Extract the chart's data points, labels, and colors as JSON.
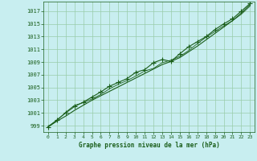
{
  "title": "Graphe pression niveau de la mer (hPa)",
  "background_color": "#c8eef0",
  "plot_bg_color": "#c8eef0",
  "grid_color": "#99ccaa",
  "line_color": "#1a5e1a",
  "marker_color": "#1a5e1a",
  "ylim": [
    998.0,
    1018.5
  ],
  "xlim": [
    -0.5,
    23.5
  ],
  "yticks": [
    999,
    1001,
    1003,
    1005,
    1007,
    1009,
    1011,
    1013,
    1015,
    1017
  ],
  "xticks": [
    0,
    1,
    2,
    3,
    4,
    5,
    6,
    7,
    8,
    9,
    10,
    11,
    12,
    13,
    14,
    15,
    16,
    17,
    18,
    19,
    20,
    21,
    22,
    23
  ],
  "line1_x": [
    0,
    1,
    2,
    3,
    4,
    5,
    6,
    7,
    8,
    9,
    10,
    11,
    12,
    13,
    14,
    15,
    16,
    17,
    18,
    19,
    20,
    21,
    22,
    23
  ],
  "line1_y": [
    998.8,
    999.7,
    1000.5,
    1001.4,
    1002.2,
    1003.0,
    1003.7,
    1004.4,
    1005.1,
    1005.8,
    1006.5,
    1007.2,
    1007.9,
    1008.6,
    1009.1,
    1009.7,
    1010.6,
    1011.5,
    1012.5,
    1013.5,
    1014.5,
    1015.5,
    1016.7,
    1018.0
  ],
  "line2_x": [
    0,
    1,
    2,
    3,
    4,
    5,
    6,
    7,
    8,
    9,
    10,
    11,
    12,
    13,
    14,
    15,
    16,
    17,
    18,
    19,
    20,
    21,
    22,
    23
  ],
  "line2_y": [
    998.8,
    999.9,
    1001.0,
    1002.0,
    1002.7,
    1003.5,
    1004.3,
    1005.2,
    1005.8,
    1006.4,
    1007.4,
    1007.8,
    1008.9,
    1009.4,
    1009.1,
    1010.3,
    1011.4,
    1012.2,
    1013.0,
    1014.1,
    1015.0,
    1015.8,
    1017.0,
    1018.2
  ],
  "line3_x": [
    0,
    1,
    2,
    3,
    4,
    5,
    6,
    7,
    8,
    9,
    10,
    11,
    12,
    13,
    14,
    15,
    16,
    17,
    18,
    19,
    20,
    21,
    22,
    23
  ],
  "line3_y": [
    998.9,
    999.8,
    1001.1,
    1002.2,
    1002.6,
    1003.2,
    1003.9,
    1004.8,
    1005.5,
    1006.1,
    1006.8,
    1007.6,
    1008.0,
    1008.9,
    1009.3,
    1009.9,
    1010.8,
    1011.9,
    1012.9,
    1013.8,
    1014.7,
    1015.5,
    1016.5,
    1017.8
  ]
}
